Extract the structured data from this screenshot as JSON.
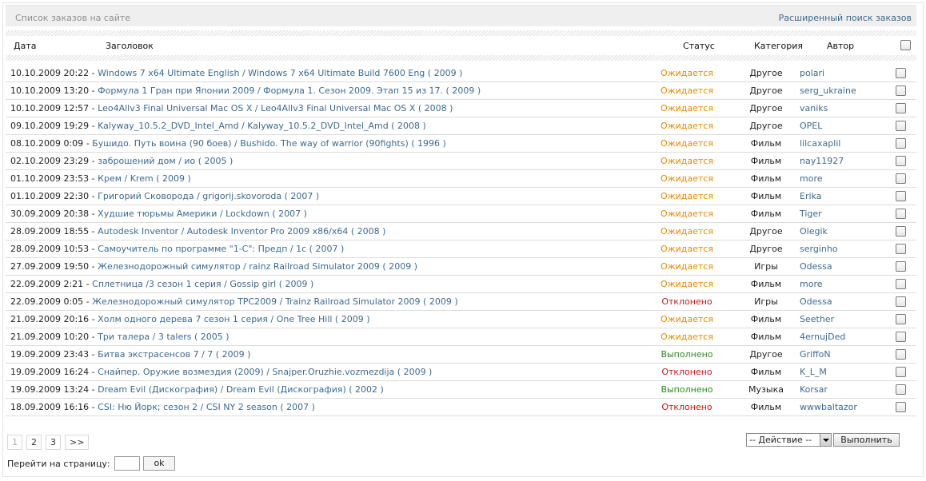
{
  "header": {
    "title": "Список заказов на сайте",
    "advanced_search": "Расширенный поиск заказов"
  },
  "columns": {
    "date": "Дата",
    "title": "Заголовок",
    "status": "Статус",
    "category": "Категория",
    "author": "Автор"
  },
  "status_colors": {
    "waiting": "#e38a00",
    "rejected": "#c41a1a",
    "done": "#2c8a1f"
  },
  "rows": [
    {
      "date": "10.10.2009 20:22",
      "title": "Windows 7 x64 Ultimate English / Windows 7 x64 Ultimate Build 7600 Eng ( 2009 )",
      "status": "Ожидается",
      "status_kind": "waiting",
      "category": "Другое",
      "author": "polari"
    },
    {
      "date": "10.10.2009 13:20",
      "title": "Формула 1 Гран при Японии 2009 / Формула 1. Сезон 2009. Этап 15 из 17. ( 2009 )",
      "status": "Ожидается",
      "status_kind": "waiting",
      "category": "Другое",
      "author": "serg_ukraine"
    },
    {
      "date": "10.10.2009 12:57",
      "title": "Leo4Allv3 Final Universal Mac OS X / Leo4Allv3 Final Universal Mac OS X ( 2008 )",
      "status": "Ожидается",
      "status_kind": "waiting",
      "category": "Другое",
      "author": "vaniks"
    },
    {
      "date": "09.10.2009 19:29",
      "title": "Kalyway_10.5.2_DVD_Intel_Amd / Kalyway_10.5.2_DVD_Intel_Amd ( 2008 )",
      "status": "Ожидается",
      "status_kind": "waiting",
      "category": "Другое",
      "author": "OPEL"
    },
    {
      "date": "08.10.2009 0:09",
      "title": "Бушидо. Путь воина (90 боев) / Bushido. The way of warrior (90fights) ( 1996 )",
      "status": "Ожидается",
      "status_kind": "waiting",
      "category": "Фильм",
      "author": "lilcaxaplil"
    },
    {
      "date": "02.10.2009 23:29",
      "title": "заброшений дом / ио ( 2005 )",
      "status": "Ожидается",
      "status_kind": "waiting",
      "category": "Фильм",
      "author": "nay11927"
    },
    {
      "date": "01.10.2009 23:53",
      "title": "Крем / Krem ( 2009 )",
      "status": "Ожидается",
      "status_kind": "waiting",
      "category": "Фильм",
      "author": "more"
    },
    {
      "date": "01.10.2009 22:30",
      "title": "Григорий Сковорода / grigorij.skovoroda ( 2007 )",
      "status": "Ожидается",
      "status_kind": "waiting",
      "category": "Фильм",
      "author": "Erika"
    },
    {
      "date": "30.09.2009 20:38",
      "title": "Худшие тюрьмы Америки / Lockdown ( 2007 )",
      "status": "Ожидается",
      "status_kind": "waiting",
      "category": "Фильм",
      "author": "Tiger"
    },
    {
      "date": "28.09.2009 18:55",
      "title": "Autodesk Inventor / Autodesk Inventor Pro 2009 x86/x64 ( 2008 )",
      "status": "Ожидается",
      "status_kind": "waiting",
      "category": "Другое",
      "author": "Olegik"
    },
    {
      "date": "28.09.2009 10:53",
      "title": "Самоучитель по программе \"1-С\": Предп / 1с ( 2007 )",
      "status": "Ожидается",
      "status_kind": "waiting",
      "category": "Другое",
      "author": "serginho"
    },
    {
      "date": "27.09.2009 19:50",
      "title": "Железнодорожный симулятор / rainz Railroad Simulator 2009 ( 2009 )",
      "status": "Ожидается",
      "status_kind": "waiting",
      "category": "Игры",
      "author": "Odessa"
    },
    {
      "date": "22.09.2009 2:21",
      "title": "Сплетница /3 сезон 1 серия / Gossip girl ( 2009 )",
      "status": "Ожидается",
      "status_kind": "waiting",
      "category": "Фильм",
      "author": "more"
    },
    {
      "date": "22.09.2009 0:05",
      "title": "Железнодорожный симулятор TPC2009 / Trainz Railroad Simulator 2009 ( 2009 )",
      "status": "Отклонено",
      "status_kind": "rejected",
      "category": "Игры",
      "author": "Odessa"
    },
    {
      "date": "21.09.2009 20:16",
      "title": "Холм одного дерева 7 сезон 1 серия / One Tree Hill ( 2009 )",
      "status": "Ожидается",
      "status_kind": "waiting",
      "category": "Фильм",
      "author": "Seether"
    },
    {
      "date": "21.09.2009 10:20",
      "title": "Три талера / 3 talers ( 2005 )",
      "status": "Ожидается",
      "status_kind": "waiting",
      "category": "Фильм",
      "author": "4ernujDed"
    },
    {
      "date": "19.09.2009 23:43",
      "title": "Битва экстрасенсов 7 / 7 ( 2009 )",
      "status": "Выполнено",
      "status_kind": "done",
      "category": "Другое",
      "author": "GriffoN"
    },
    {
      "date": "19.09.2009 16:24",
      "title": "Снайпер. Оружие возмездия (2009) / Snajper.Oruzhie.vozmezdija ( 2009 )",
      "status": "Отклонено",
      "status_kind": "rejected",
      "category": "Фильм",
      "author": "K_L_M"
    },
    {
      "date": "19.09.2009 13:24",
      "title": "Dream Evil (Дискография) / Dream Evil (Дискография) ( 2002 )",
      "status": "Выполнено",
      "status_kind": "done",
      "category": "Музыка",
      "author": "Korsar"
    },
    {
      "date": "18.09.2009 16:16",
      "title": "CSI: Ню Йорк; сезон 2 / CSI NY 2 season ( 2007 )",
      "status": "Отклонено",
      "status_kind": "rejected",
      "category": "Фильм",
      "author": "wwwbaltazor"
    }
  ],
  "pagination": {
    "pages": [
      "1",
      "2",
      "3",
      ">>"
    ],
    "current": "1",
    "goto_label": "Перейти на страницу:",
    "goto_button": "ok"
  },
  "action": {
    "select_value": "-- Действие --",
    "run_button": "Выполнить"
  }
}
